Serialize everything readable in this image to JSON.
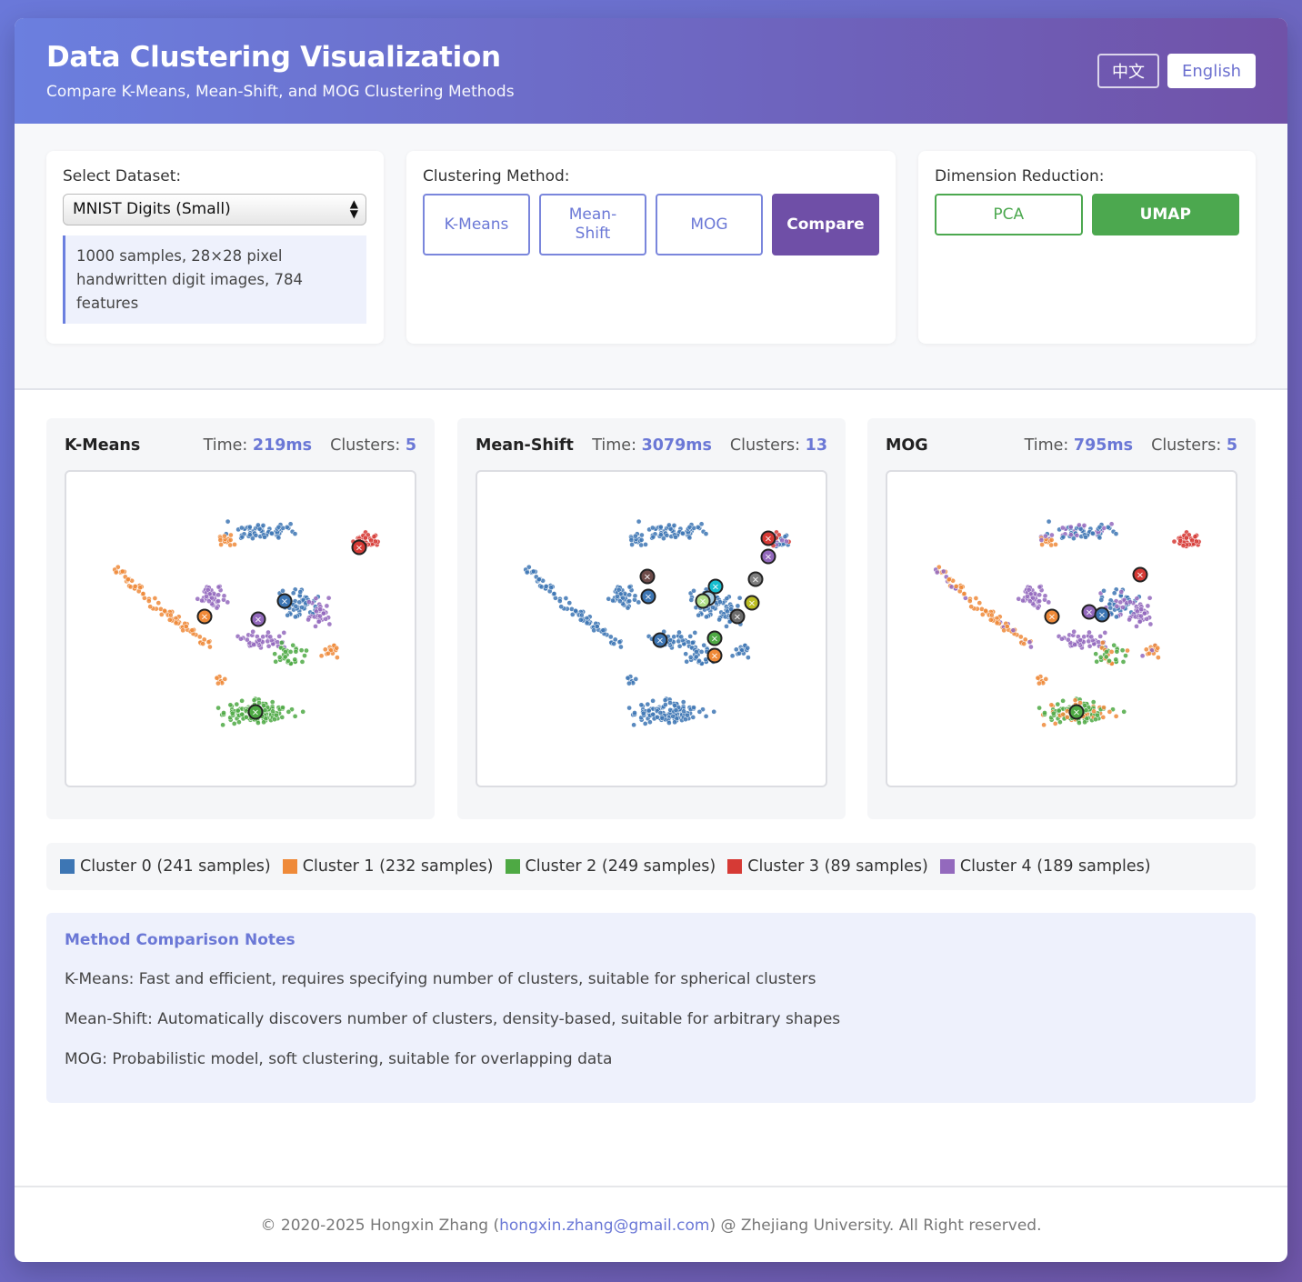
{
  "header": {
    "title": "Data Clustering Visualization",
    "subtitle": "Compare K-Means, Mean-Shift, and MOG Clustering Methods",
    "lang_zh": "中文",
    "lang_en": "English"
  },
  "dataset": {
    "label": "Select Dataset:",
    "selected": "MNIST Digits (Small)",
    "description": "1000 samples, 28×28 pixel handwritten digit images, 784 features"
  },
  "method": {
    "label": "Clustering Method:",
    "buttons": [
      "K-Means",
      "Mean-Shift",
      "MOG",
      "Compare"
    ],
    "active": "Compare"
  },
  "reduction": {
    "label": "Dimension Reduction:",
    "buttons": [
      "PCA",
      "UMAP"
    ],
    "active": "UMAP"
  },
  "panels": [
    {
      "name": "K-Means",
      "time_label": "Time:",
      "time": "219ms",
      "clusters_label": "Clusters:",
      "clusters": "5"
    },
    {
      "name": "Mean-Shift",
      "time_label": "Time:",
      "time": "3079ms",
      "clusters_label": "Clusters:",
      "clusters": "13"
    },
    {
      "name": "MOG",
      "time_label": "Time:",
      "time": "795ms",
      "clusters_label": "Clusters:",
      "clusters": "5"
    }
  ],
  "colors": {
    "cluster0": "#3d76b4",
    "cluster1": "#ef8a39",
    "cluster2": "#4ea944",
    "cluster3": "#d63a35",
    "cluster4": "#9369bd",
    "accent": "#6b78d6",
    "compare_active": "#6f4fa7",
    "umap_active": "#4ca84f"
  },
  "legend": [
    {
      "label": "Cluster 0 (241 samples)",
      "color": "#3d76b4"
    },
    {
      "label": "Cluster 1 (232 samples)",
      "color": "#ef8a39"
    },
    {
      "label": "Cluster 2 (249 samples)",
      "color": "#4ea944"
    },
    {
      "label": "Cluster 3 (89 samples)",
      "color": "#d63a35"
    },
    {
      "label": "Cluster 4 (189 samples)",
      "color": "#9369bd"
    }
  ],
  "notes": {
    "title": "Method Comparison Notes",
    "items": [
      "K-Means: Fast and efficient, requires specifying number of clusters, suitable for spherical clusters",
      "Mean-Shift: Automatically discovers number of clusters, density-based, suitable for arbitrary shapes",
      "MOG: Probabilistic model, soft clustering, suitable for overlapping data"
    ]
  },
  "footer": {
    "prefix": "© 2020-2025 Hongxin Zhang (",
    "email": "hongxin.zhang@gmail.com",
    "suffix": ") @ Zhejiang University. All Right reserved."
  },
  "icons": {
    "select_arrow": "updown-arrow-icon",
    "centroid": "centroid-x-icon"
  }
}
